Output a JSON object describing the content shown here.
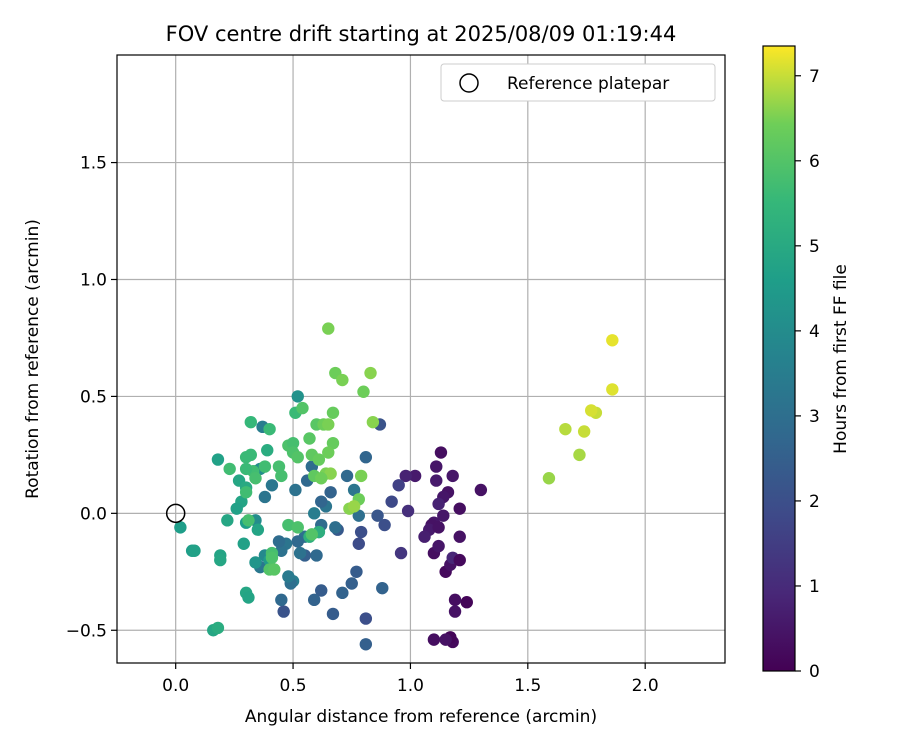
{
  "chart_data": {
    "type": "scatter",
    "title": "FOV centre drift starting at 2025/08/09 01:19:44",
    "xlabel": "Angular distance from reference (arcmin)",
    "ylabel": "Rotation from reference (arcmin)",
    "xlim": [
      -0.25,
      2.34
    ],
    "ylim": [
      -0.64,
      1.96
    ],
    "xticks": [
      0.0,
      0.5,
      1.0,
      1.5,
      2.0
    ],
    "xtick_labels": [
      "0.0",
      "0.5",
      "1.0",
      "1.5",
      "2.0"
    ],
    "yticks": [
      -0.5,
      0.0,
      0.5,
      1.0,
      1.5
    ],
    "ytick_labels": [
      "−0.5",
      "0.0",
      "0.5",
      "1.0",
      "1.5"
    ],
    "grid": true,
    "legend": {
      "position": "top-right",
      "entries": [
        "Reference platepar"
      ]
    },
    "reference_point": {
      "x": 0.0,
      "y": 0.0,
      "label": "Reference platepar"
    },
    "colorbar": {
      "label": "Hours from first FF file",
      "range": [
        0,
        7.35
      ],
      "ticks": [
        0,
        1,
        2,
        3,
        4,
        5,
        6,
        7
      ],
      "tick_labels": [
        "0",
        "1",
        "2",
        "3",
        "4",
        "5",
        "6",
        "7"
      ],
      "colormap": "viridis"
    },
    "series": [
      {
        "color_value": "hours",
        "points": [
          {
            "x": 1.86,
            "y": 0.74,
            "t": 7.2
          },
          {
            "x": 1.86,
            "y": 0.53,
            "t": 7.15
          },
          {
            "x": 1.79,
            "y": 0.43,
            "t": 7.0
          },
          {
            "x": 1.77,
            "y": 0.44,
            "t": 7.1
          },
          {
            "x": 1.74,
            "y": 0.35,
            "t": 7.0
          },
          {
            "x": 1.72,
            "y": 0.25,
            "t": 6.8
          },
          {
            "x": 1.66,
            "y": 0.36,
            "t": 6.9
          },
          {
            "x": 1.59,
            "y": 0.15,
            "t": 6.7
          },
          {
            "x": 1.3,
            "y": 0.1,
            "t": 0.4
          },
          {
            "x": 1.24,
            "y": -0.38,
            "t": 0.1
          },
          {
            "x": 1.19,
            "y": -0.37,
            "t": 0.3
          },
          {
            "x": 1.19,
            "y": -0.42,
            "t": 0.4
          },
          {
            "x": 1.18,
            "y": -0.55,
            "t": 0.2
          },
          {
            "x": 1.17,
            "y": -0.53,
            "t": 0.1
          },
          {
            "x": 1.15,
            "y": -0.54,
            "t": 0.4
          },
          {
            "x": 1.15,
            "y": -0.25,
            "t": 0.2
          },
          {
            "x": 1.17,
            "y": -0.22,
            "t": 0.4
          },
          {
            "x": 1.18,
            "y": -0.19,
            "t": 0.9
          },
          {
            "x": 1.21,
            "y": -0.2,
            "t": 0.2
          },
          {
            "x": 1.21,
            "y": -0.1,
            "t": 0.4
          },
          {
            "x": 1.21,
            "y": 0.02,
            "t": 0.3
          },
          {
            "x": 1.18,
            "y": 0.16,
            "t": 0.5
          },
          {
            "x": 1.16,
            "y": 0.09,
            "t": 0.4
          },
          {
            "x": 1.14,
            "y": 0.07,
            "t": 0.5
          },
          {
            "x": 1.12,
            "y": 0.04,
            "t": 0.8
          },
          {
            "x": 1.13,
            "y": 0.26,
            "t": 0.3
          },
          {
            "x": 1.11,
            "y": 0.2,
            "t": 0.5
          },
          {
            "x": 1.11,
            "y": 0.14,
            "t": 0.6
          },
          {
            "x": 1.1,
            "y": -0.04,
            "t": 0.5
          },
          {
            "x": 1.09,
            "y": -0.05,
            "t": 0.4
          },
          {
            "x": 1.08,
            "y": -0.07,
            "t": 0.6
          },
          {
            "x": 1.06,
            "y": -0.1,
            "t": 0.7
          },
          {
            "x": 1.12,
            "y": -0.06,
            "t": 0.4
          },
          {
            "x": 1.1,
            "y": -0.17,
            "t": 0.3
          },
          {
            "x": 1.12,
            "y": -0.14,
            "t": 0.5
          },
          {
            "x": 1.14,
            "y": -0.01,
            "t": 0.5
          },
          {
            "x": 1.1,
            "y": -0.54,
            "t": 0.3
          },
          {
            "x": 1.02,
            "y": 0.16,
            "t": 0.6
          },
          {
            "x": 0.98,
            "y": 0.16,
            "t": 0.8
          },
          {
            "x": 0.99,
            "y": 0.01,
            "t": 1.1
          },
          {
            "x": 0.95,
            "y": 0.12,
            "t": 1.6
          },
          {
            "x": 0.96,
            "y": -0.17,
            "t": 1.3
          },
          {
            "x": 0.92,
            "y": 0.05,
            "t": 1.8
          },
          {
            "x": 0.89,
            "y": -0.05,
            "t": 2.0
          },
          {
            "x": 0.86,
            "y": -0.01,
            "t": 2.2
          },
          {
            "x": 0.88,
            "y": -0.32,
            "t": 2.6
          },
          {
            "x": 0.81,
            "y": -0.45,
            "t": 2.0
          },
          {
            "x": 0.81,
            "y": -0.56,
            "t": 2.5
          },
          {
            "x": 0.81,
            "y": 0.24,
            "t": 2.7
          },
          {
            "x": 0.87,
            "y": 0.38,
            "t": 2.1
          },
          {
            "x": 0.79,
            "y": -0.08,
            "t": 2.0
          },
          {
            "x": 0.78,
            "y": -0.01,
            "t": 3.0
          },
          {
            "x": 0.78,
            "y": -0.13,
            "t": 1.9
          },
          {
            "x": 0.77,
            "y": -0.25,
            "t": 2.4
          },
          {
            "x": 0.75,
            "y": -0.3,
            "t": 2.5
          },
          {
            "x": 0.76,
            "y": 0.1,
            "t": 3.2
          },
          {
            "x": 0.73,
            "y": 0.16,
            "t": 2.8
          },
          {
            "x": 0.71,
            "y": -0.34,
            "t": 2.6
          },
          {
            "x": 0.69,
            "y": -0.07,
            "t": 2.3
          },
          {
            "x": 0.68,
            "y": -0.06,
            "t": 3.0
          },
          {
            "x": 0.67,
            "y": -0.43,
            "t": 2.4
          },
          {
            "x": 0.66,
            "y": 0.09,
            "t": 2.6
          },
          {
            "x": 0.64,
            "y": 0.03,
            "t": 3.2
          },
          {
            "x": 0.62,
            "y": 0.05,
            "t": 2.7
          },
          {
            "x": 0.62,
            "y": -0.05,
            "t": 2.9
          },
          {
            "x": 0.61,
            "y": -0.08,
            "t": 3.2
          },
          {
            "x": 0.59,
            "y": 0.0,
            "t": 3.5
          },
          {
            "x": 0.62,
            "y": -0.33,
            "t": 2.4
          },
          {
            "x": 0.59,
            "y": -0.37,
            "t": 2.6
          },
          {
            "x": 0.6,
            "y": -0.18,
            "t": 2.8
          },
          {
            "x": 0.58,
            "y": 0.2,
            "t": 2.9
          },
          {
            "x": 0.56,
            "y": 0.14,
            "t": 2.8
          },
          {
            "x": 0.55,
            "y": -0.1,
            "t": 3.0
          },
          {
            "x": 0.55,
            "y": -0.18,
            "t": 2.5
          },
          {
            "x": 0.53,
            "y": -0.17,
            "t": 3.1
          },
          {
            "x": 0.52,
            "y": -0.12,
            "t": 2.8
          },
          {
            "x": 0.51,
            "y": 0.1,
            "t": 3.1
          },
          {
            "x": 0.5,
            "y": -0.29,
            "t": 3.5
          },
          {
            "x": 0.49,
            "y": -0.3,
            "t": 3.0
          },
          {
            "x": 0.48,
            "y": -0.27,
            "t": 3.4
          },
          {
            "x": 0.47,
            "y": -0.13,
            "t": 3.2
          },
          {
            "x": 0.46,
            "y": -0.42,
            "t": 2.1
          },
          {
            "x": 0.45,
            "y": -0.16,
            "t": 3.1
          },
          {
            "x": 0.44,
            "y": -0.12,
            "t": 2.9
          },
          {
            "x": 0.45,
            "y": -0.37,
            "t": 2.8
          },
          {
            "x": 0.41,
            "y": 0.12,
            "t": 3.3
          },
          {
            "x": 0.38,
            "y": 0.07,
            "t": 3.2
          },
          {
            "x": 0.37,
            "y": 0.37,
            "t": 3.5
          },
          {
            "x": 0.36,
            "y": -0.23,
            "t": 3.3
          },
          {
            "x": 0.52,
            "y": 0.5,
            "t": 4.2
          },
          {
            "x": 0.36,
            "y": 0.19,
            "t": 4.0
          },
          {
            "x": 0.34,
            "y": 0.18,
            "t": 4.1
          },
          {
            "x": 0.38,
            "y": -0.18,
            "t": 3.9
          },
          {
            "x": 0.34,
            "y": -0.03,
            "t": 4.0
          },
          {
            "x": 0.3,
            "y": -0.04,
            "t": 4.6
          },
          {
            "x": 0.35,
            "y": -0.07,
            "t": 4.8
          },
          {
            "x": 0.34,
            "y": -0.21,
            "t": 4.3
          },
          {
            "x": 0.4,
            "y": -0.2,
            "t": 4.5
          },
          {
            "x": 0.39,
            "y": 0.27,
            "t": 5.1
          },
          {
            "x": 0.29,
            "y": -0.13,
            "t": 4.7
          },
          {
            "x": 0.3,
            "y": -0.34,
            "t": 4.9
          },
          {
            "x": 0.31,
            "y": -0.36,
            "t": 4.8
          },
          {
            "x": 0.28,
            "y": 0.05,
            "t": 4.8
          },
          {
            "x": 0.26,
            "y": 0.02,
            "t": 4.7
          },
          {
            "x": 0.27,
            "y": 0.14,
            "t": 4.9
          },
          {
            "x": 0.3,
            "y": 0.11,
            "t": 5.0
          },
          {
            "x": 0.22,
            "y": -0.03,
            "t": 4.9
          },
          {
            "x": 0.18,
            "y": 0.23,
            "t": 4.7
          },
          {
            "x": 0.19,
            "y": -0.18,
            "t": 4.8
          },
          {
            "x": 0.19,
            "y": -0.2,
            "t": 4.9
          },
          {
            "x": 0.07,
            "y": -0.16,
            "t": 4.6
          },
          {
            "x": 0.08,
            "y": -0.16,
            "t": 4.7
          },
          {
            "x": 0.02,
            "y": -0.06,
            "t": 4.6
          },
          {
            "x": 0.16,
            "y": -0.5,
            "t": 4.9
          },
          {
            "x": 0.18,
            "y": -0.49,
            "t": 5.1
          },
          {
            "x": 0.61,
            "y": -0.08,
            "t": 5.2
          },
          {
            "x": 0.57,
            "y": -0.1,
            "t": 5.2
          },
          {
            "x": 0.32,
            "y": 0.39,
            "t": 5.5
          },
          {
            "x": 0.4,
            "y": 0.36,
            "t": 5.6
          },
          {
            "x": 0.32,
            "y": 0.25,
            "t": 5.6
          },
          {
            "x": 0.3,
            "y": 0.24,
            "t": 5.6
          },
          {
            "x": 0.38,
            "y": 0.2,
            "t": 5.7
          },
          {
            "x": 0.33,
            "y": 0.18,
            "t": 5.7
          },
          {
            "x": 0.3,
            "y": 0.19,
            "t": 5.6
          },
          {
            "x": 0.23,
            "y": 0.19,
            "t": 5.7
          },
          {
            "x": 0.34,
            "y": 0.15,
            "t": 5.8
          },
          {
            "x": 0.44,
            "y": 0.2,
            "t": 5.8
          },
          {
            "x": 0.45,
            "y": 0.16,
            "t": 5.8
          },
          {
            "x": 0.3,
            "y": 0.09,
            "t": 5.7
          },
          {
            "x": 0.31,
            "y": -0.03,
            "t": 5.8
          },
          {
            "x": 0.48,
            "y": -0.05,
            "t": 5.8
          },
          {
            "x": 0.52,
            "y": -0.06,
            "t": 5.9
          },
          {
            "x": 0.58,
            "y": -0.09,
            "t": 6.0
          },
          {
            "x": 0.41,
            "y": -0.17,
            "t": 5.8
          },
          {
            "x": 0.41,
            "y": -0.19,
            "t": 5.9
          },
          {
            "x": 0.4,
            "y": -0.24,
            "t": 6.0
          },
          {
            "x": 0.42,
            "y": -0.24,
            "t": 6.1
          },
          {
            "x": 0.51,
            "y": 0.43,
            "t": 5.6
          },
          {
            "x": 0.48,
            "y": 0.29,
            "t": 5.9
          },
          {
            "x": 0.5,
            "y": 0.3,
            "t": 5.8
          },
          {
            "x": 0.5,
            "y": 0.26,
            "t": 5.9
          },
          {
            "x": 0.52,
            "y": 0.24,
            "t": 6.0
          },
          {
            "x": 0.54,
            "y": 0.45,
            "t": 6.0
          },
          {
            "x": 0.57,
            "y": 0.32,
            "t": 6.1
          },
          {
            "x": 0.58,
            "y": 0.25,
            "t": 6.2
          },
          {
            "x": 0.6,
            "y": 0.38,
            "t": 6.1
          },
          {
            "x": 0.59,
            "y": 0.16,
            "t": 6.2
          },
          {
            "x": 0.61,
            "y": 0.23,
            "t": 6.3
          },
          {
            "x": 0.65,
            "y": 0.79,
            "t": 6.5
          },
          {
            "x": 0.68,
            "y": 0.6,
            "t": 6.4
          },
          {
            "x": 0.71,
            "y": 0.57,
            "t": 6.5
          },
          {
            "x": 0.83,
            "y": 0.6,
            "t": 6.6
          },
          {
            "x": 0.8,
            "y": 0.52,
            "t": 6.4
          },
          {
            "x": 0.84,
            "y": 0.39,
            "t": 6.6
          },
          {
            "x": 0.67,
            "y": 0.43,
            "t": 6.3
          },
          {
            "x": 0.63,
            "y": 0.38,
            "t": 6.4
          },
          {
            "x": 0.65,
            "y": 0.38,
            "t": 6.5
          },
          {
            "x": 0.67,
            "y": 0.3,
            "t": 6.3
          },
          {
            "x": 0.65,
            "y": 0.26,
            "t": 6.4
          },
          {
            "x": 0.64,
            "y": 0.17,
            "t": 6.5
          },
          {
            "x": 0.66,
            "y": 0.17,
            "t": 6.6
          },
          {
            "x": 0.62,
            "y": 0.15,
            "t": 6.4
          },
          {
            "x": 0.79,
            "y": 0.16,
            "t": 6.5
          },
          {
            "x": 0.78,
            "y": 0.06,
            "t": 6.4
          },
          {
            "x": 0.74,
            "y": 0.02,
            "t": 6.6
          },
          {
            "x": 0.76,
            "y": 0.03,
            "t": 6.7
          }
        ]
      }
    ]
  }
}
